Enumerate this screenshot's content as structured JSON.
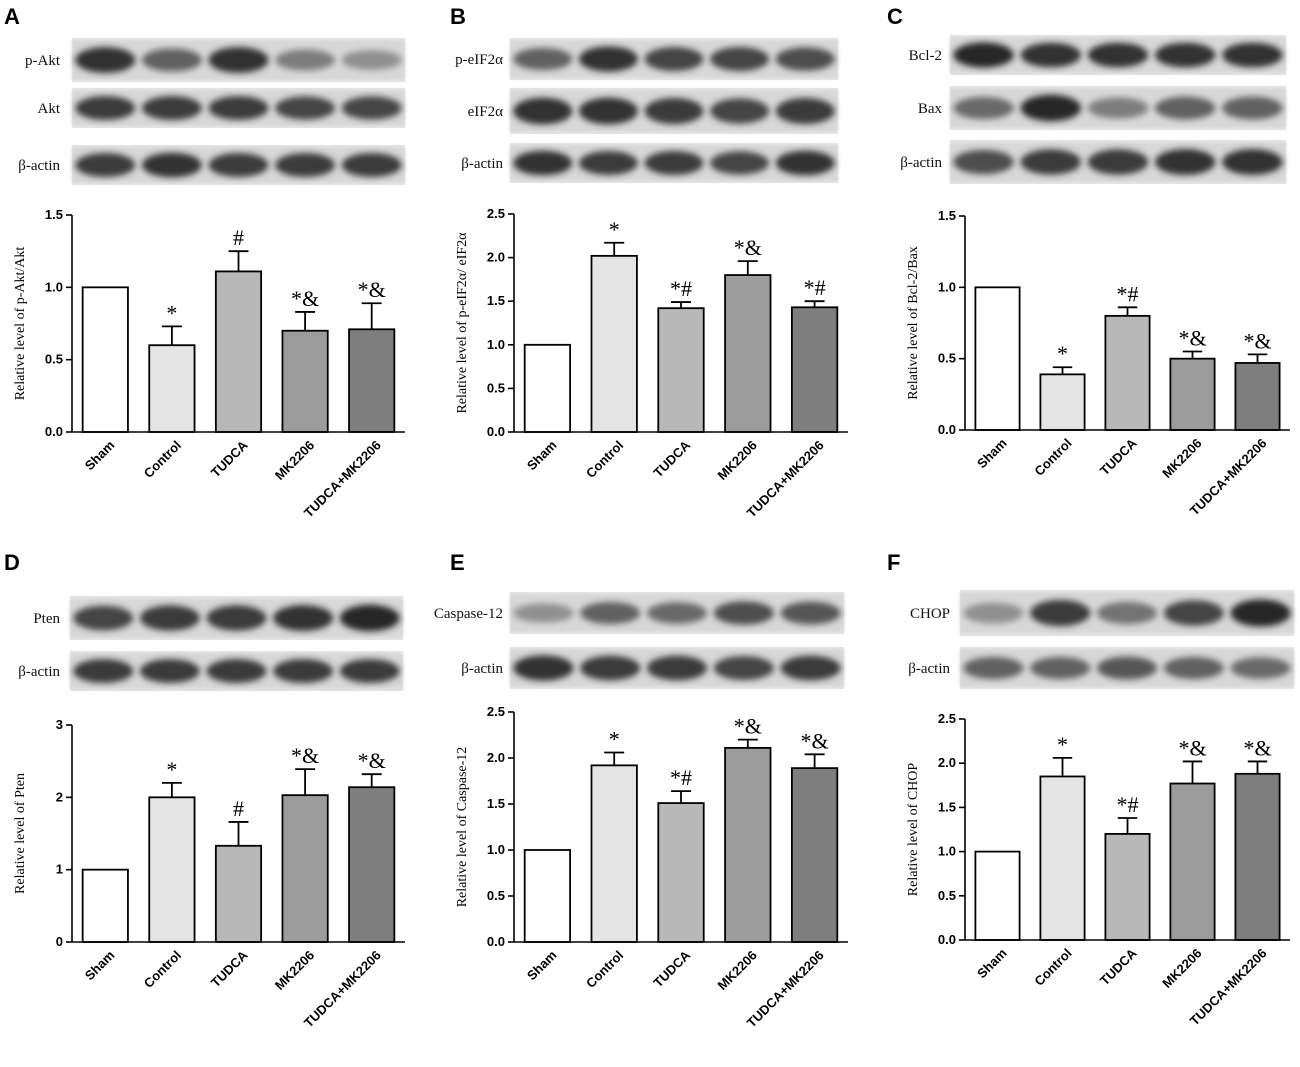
{
  "categories": [
    "Sham",
    "Control",
    "TUDCA",
    "MK2206",
    "TUDCA+MK2206"
  ],
  "bar_colors": [
    "#ffffff",
    "#e4e4e4",
    "#b8b8b8",
    "#9c9c9c",
    "#7e7e7e"
  ],
  "panels": [
    {
      "letter": "A",
      "blots": [
        {
          "label": "p-Akt",
          "intensity": [
            0.85,
            0.6,
            0.85,
            0.45,
            0.35
          ]
        },
        {
          "label": "Akt",
          "intensity": [
            0.8,
            0.8,
            0.8,
            0.75,
            0.75
          ]
        },
        {
          "label": "β-actin",
          "intensity": [
            0.8,
            0.85,
            0.8,
            0.8,
            0.8
          ]
        }
      ]
    },
    {
      "letter": "B",
      "blots": [
        {
          "label": "p-eIF2α",
          "intensity": [
            0.6,
            0.85,
            0.75,
            0.75,
            0.7
          ]
        },
        {
          "label": "eIF2α",
          "intensity": [
            0.85,
            0.85,
            0.8,
            0.75,
            0.8
          ]
        },
        {
          "label": "β-actin",
          "intensity": [
            0.85,
            0.8,
            0.8,
            0.75,
            0.85
          ]
        }
      ]
    },
    {
      "letter": "C",
      "blots": [
        {
          "label": "Bcl-2",
          "intensity": [
            0.9,
            0.85,
            0.85,
            0.85,
            0.85
          ]
        },
        {
          "label": "Bax",
          "intensity": [
            0.55,
            0.9,
            0.45,
            0.6,
            0.6
          ]
        },
        {
          "label": "β-actin",
          "intensity": [
            0.7,
            0.8,
            0.8,
            0.85,
            0.85
          ]
        }
      ]
    },
    {
      "letter": "D",
      "blots": [
        {
          "label": "Pten",
          "intensity": [
            0.75,
            0.8,
            0.8,
            0.85,
            0.9
          ]
        },
        {
          "label": "β-actin",
          "intensity": [
            0.8,
            0.8,
            0.8,
            0.8,
            0.8
          ]
        }
      ]
    },
    {
      "letter": "E",
      "blots": [
        {
          "label": "Caspase-12",
          "intensity": [
            0.35,
            0.6,
            0.55,
            0.7,
            0.65
          ]
        },
        {
          "label": "β-actin",
          "intensity": [
            0.85,
            0.8,
            0.8,
            0.75,
            0.8
          ]
        }
      ]
    },
    {
      "letter": "F",
      "blots": [
        {
          "label": "CHOP",
          "intensity": [
            0.35,
            0.8,
            0.5,
            0.75,
            0.9
          ]
        },
        {
          "label": "β-actin",
          "intensity": [
            0.6,
            0.6,
            0.65,
            0.6,
            0.55
          ]
        }
      ]
    }
  ],
  "chart_data": [
    {
      "type": "bar",
      "panel": "A",
      "categories": [
        "Sham",
        "Control",
        "TUDCA",
        "MK2206",
        "TUDCA+MK2206"
      ],
      "values": [
        1.0,
        0.6,
        1.11,
        0.7,
        0.71
      ],
      "errors": [
        0,
        0.13,
        0.14,
        0.13,
        0.18
      ],
      "significance": [
        "",
        "*",
        "#",
        "*&",
        "*&"
      ],
      "ylabel": "Relative level of p-Akt/Akt",
      "ylim": [
        0,
        1.5
      ],
      "yticks": [
        "0.0",
        "0.5",
        "1.0",
        "1.5"
      ]
    },
    {
      "type": "bar",
      "panel": "B",
      "categories": [
        "Sham",
        "Control",
        "TUDCA",
        "MK2206",
        "TUDCA+MK2206"
      ],
      "values": [
        1.0,
        2.02,
        1.42,
        1.8,
        1.43
      ],
      "errors": [
        0,
        0.15,
        0.07,
        0.16,
        0.07
      ],
      "significance": [
        "",
        "*",
        "*#",
        "*&",
        "*#"
      ],
      "ylabel": "Relative level of p-eIF2α/ eIF2α",
      "ylim": [
        0,
        2.5
      ],
      "yticks": [
        "0.0",
        "0.5",
        "1.0",
        "1.5",
        "2.0",
        "2.5"
      ]
    },
    {
      "type": "bar",
      "panel": "C",
      "categories": [
        "Sham",
        "Control",
        "TUDCA",
        "MK2206",
        "TUDCA+MK2206"
      ],
      "values": [
        1.0,
        0.39,
        0.8,
        0.5,
        0.47
      ],
      "errors": [
        0,
        0.05,
        0.06,
        0.05,
        0.06
      ],
      "significance": [
        "",
        "*",
        "*#",
        "*&",
        "*&"
      ],
      "ylabel": "Relative level of Bcl-2/Bax",
      "ylim": [
        0,
        1.5
      ],
      "yticks": [
        "0.0",
        "0.5",
        "1.0",
        "1.5"
      ]
    },
    {
      "type": "bar",
      "panel": "D",
      "categories": [
        "Sham",
        "Control",
        "TUDCA",
        "MK2206",
        "TUDCA+MK2206"
      ],
      "values": [
        1.0,
        2.0,
        1.33,
        2.03,
        2.14
      ],
      "errors": [
        0,
        0.2,
        0.33,
        0.36,
        0.18
      ],
      "significance": [
        "",
        "*",
        "#",
        "*&",
        "*&"
      ],
      "ylabel": "Relative level of Pten",
      "ylim": [
        0,
        3
      ],
      "yticks": [
        "0",
        "1",
        "2",
        "3"
      ]
    },
    {
      "type": "bar",
      "panel": "E",
      "categories": [
        "Sham",
        "Control",
        "TUDCA",
        "MK2206",
        "TUDCA+MK2206"
      ],
      "values": [
        1.0,
        1.92,
        1.51,
        2.11,
        1.89
      ],
      "errors": [
        0,
        0.14,
        0.13,
        0.09,
        0.15
      ],
      "significance": [
        "",
        "*",
        "*#",
        "*&",
        "*&"
      ],
      "ylabel": "Relative level of Caspase-12",
      "ylim": [
        0,
        2.5
      ],
      "yticks": [
        "0.0",
        "0.5",
        "1.0",
        "1.5",
        "2.0",
        "2.5"
      ]
    },
    {
      "type": "bar",
      "panel": "F",
      "categories": [
        "Sham",
        "Control",
        "TUDCA",
        "MK2206",
        "TUDCA+MK2206"
      ],
      "values": [
        1.0,
        1.85,
        1.2,
        1.77,
        1.88
      ],
      "errors": [
        0,
        0.21,
        0.18,
        0.25,
        0.14
      ],
      "significance": [
        "",
        "*",
        "*#",
        "*&",
        "*&"
      ],
      "ylabel": "Relative level of CHOP",
      "ylim": [
        0,
        2.5
      ],
      "yticks": [
        "0.0",
        "0.5",
        "1.0",
        "1.5",
        "2.0",
        "2.5"
      ]
    }
  ]
}
